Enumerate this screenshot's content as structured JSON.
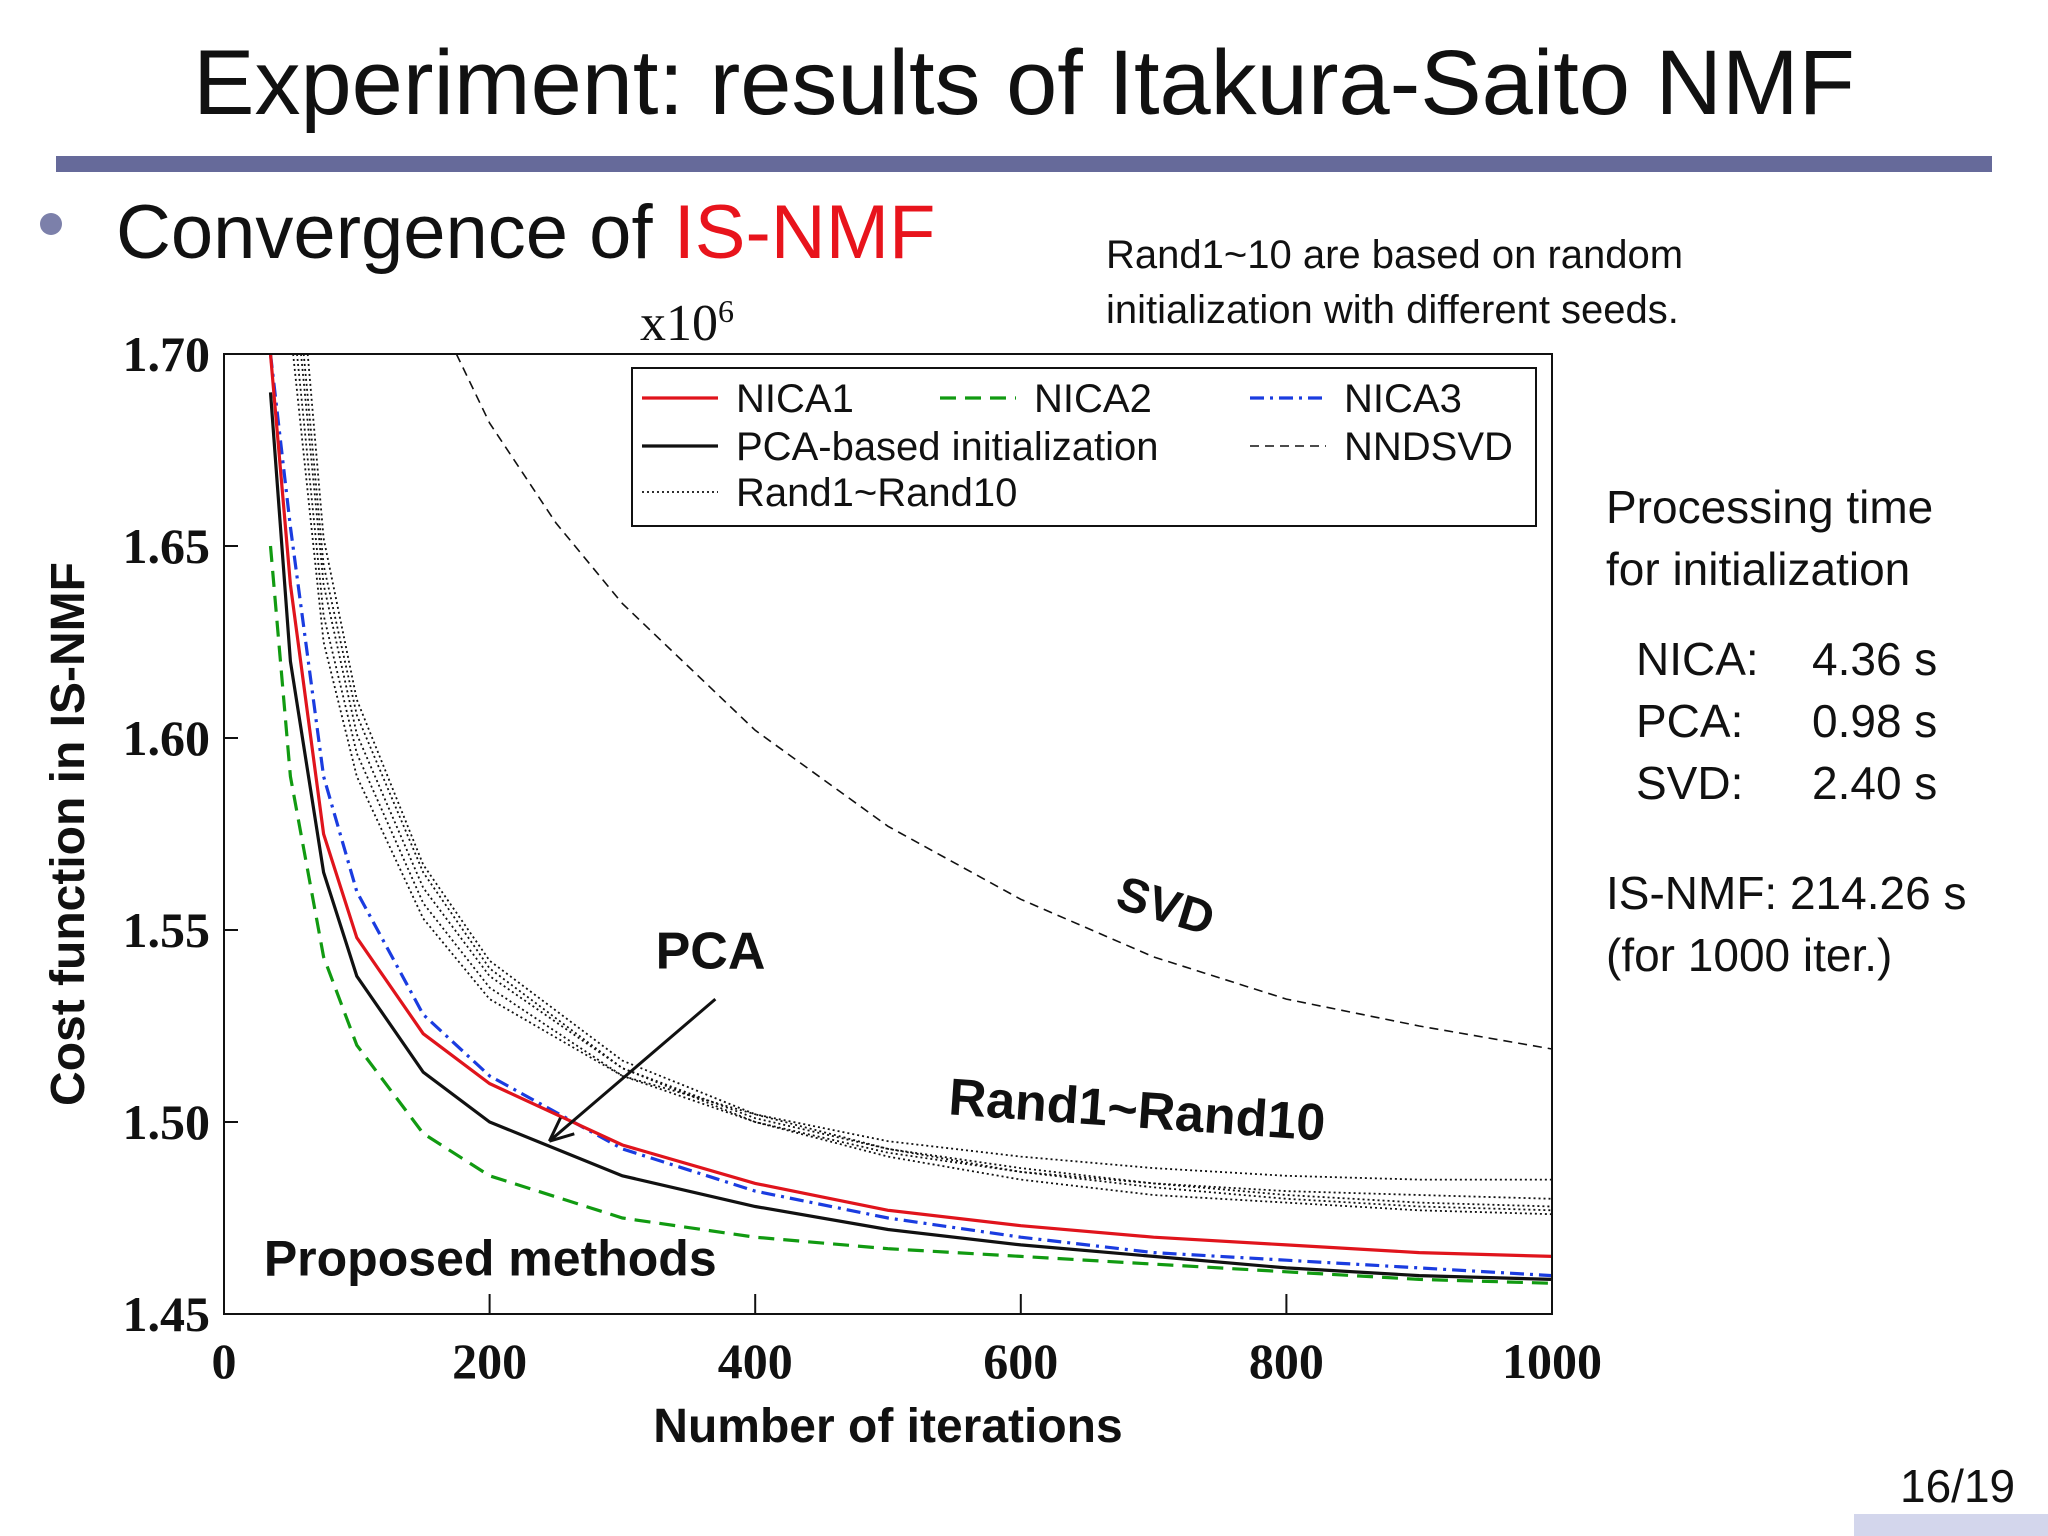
{
  "slide": {
    "title": "Experiment: results of Itakura-Saito NMF",
    "bullet": {
      "prefix": "Convergence of ",
      "highlight": "IS-NMF"
    },
    "note_lines": [
      "Rand1~10 are based on random",
      "initialization with different seeds."
    ],
    "page": "16/19"
  },
  "side_panel": {
    "heading_lines": [
      "Processing time",
      "for initialization"
    ],
    "times": [
      {
        "label": "NICA:",
        "value": "4.36 s"
      },
      {
        "label": "PCA:",
        "value": "0.98 s"
      },
      {
        "label": "SVD:",
        "value": "2.40 s"
      }
    ],
    "isnmf_lines": [
      "IS-NMF: 214.26 s",
      "(for 1000 iter.)"
    ]
  },
  "colors": {
    "accent": "#e8141c",
    "rule": "#666a9a",
    "nica1": "#e0141c",
    "nica2": "#119a11",
    "nica3": "#1a3ce0"
  },
  "chart_data": {
    "type": "line",
    "xlabel": "Number of iterations",
    "ylabel": "Cost function in IS-NMF",
    "y_multiplier": "x10",
    "y_multiplier_exp": "6",
    "xlim": [
      0,
      1000
    ],
    "ylim": [
      1.45,
      1.7
    ],
    "x_ticks": [
      "0",
      "200",
      "400",
      "600",
      "800",
      "1000"
    ],
    "y_ticks": [
      "1.45",
      "1.50",
      "1.55",
      "1.60",
      "1.65",
      "1.70"
    ],
    "x": [
      35,
      50,
      75,
      100,
      150,
      200,
      300,
      400,
      500,
      600,
      700,
      800,
      900,
      1000
    ],
    "series": [
      {
        "name": "NICA1",
        "style": "solid",
        "color": "#e0141c",
        "values": [
          1.7,
          1.64,
          1.575,
          1.548,
          1.523,
          1.51,
          1.494,
          1.484,
          1.477,
          1.473,
          1.47,
          1.468,
          1.466,
          1.465
        ]
      },
      {
        "name": "NICA2",
        "style": "dashed",
        "color": "#119a11",
        "values": [
          1.65,
          1.59,
          1.543,
          1.52,
          1.497,
          1.486,
          1.475,
          1.47,
          1.467,
          1.465,
          1.463,
          1.461,
          1.459,
          1.458
        ]
      },
      {
        "name": "NICA3",
        "style": "dashdot",
        "color": "#1a3ce0",
        "values": [
          1.7,
          1.655,
          1.59,
          1.56,
          1.528,
          1.512,
          1.493,
          1.482,
          1.475,
          1.47,
          1.466,
          1.464,
          1.462,
          1.46
        ]
      },
      {
        "name": "PCA-based initialization",
        "style": "solid",
        "color": "#111111",
        "values": [
          1.69,
          1.62,
          1.565,
          1.538,
          1.513,
          1.5,
          1.486,
          1.478,
          1.472,
          1.468,
          1.465,
          1.462,
          1.46,
          1.459
        ]
      },
      {
        "name": "NNDSVD",
        "style": "dashed-thin",
        "color": "#111111",
        "x": [
          175,
          200,
          250,
          300,
          400,
          500,
          600,
          700,
          800,
          900,
          1000
        ],
        "values": [
          1.7,
          1.682,
          1.656,
          1.635,
          1.602,
          1.577,
          1.558,
          1.543,
          1.532,
          1.525,
          1.519
        ]
      },
      {
        "name": "Rand1~Rand10",
        "style": "dotted",
        "color": "#111111",
        "bundle": [
          {
            "x": [
              52,
              75,
              100,
              150,
              200,
              300,
              400,
              500,
              600,
              700,
              800,
              900,
              1000
            ],
            "values": [
              1.7,
              1.625,
              1.59,
              1.553,
              1.532,
              1.512,
              1.502,
              1.495,
              1.491,
              1.488,
              1.486,
              1.485,
              1.485
            ]
          },
          {
            "x": [
              55,
              75,
              100,
              150,
              200,
              300,
              400,
              500,
              600,
              700,
              800,
              900,
              1000
            ],
            "values": [
              1.7,
              1.632,
              1.596,
              1.557,
              1.535,
              1.512,
              1.5,
              1.492,
              1.487,
              1.484,
              1.482,
              1.481,
              1.48
            ]
          },
          {
            "x": [
              58,
              75,
              100,
              150,
              200,
              300,
              400,
              500,
              600,
              700,
              800,
              900,
              1000
            ],
            "values": [
              1.7,
              1.64,
              1.601,
              1.561,
              1.538,
              1.514,
              1.501,
              1.493,
              1.488,
              1.484,
              1.481,
              1.479,
              1.478
            ]
          },
          {
            "x": [
              60,
              75,
              100,
              150,
              200,
              300,
              400,
              500,
              600,
              700,
              800,
              900,
              1000
            ],
            "values": [
              1.7,
              1.645,
              1.606,
              1.565,
              1.54,
              1.514,
              1.5,
              1.491,
              1.485,
              1.481,
              1.479,
              1.477,
              1.476
            ]
          },
          {
            "x": [
              63,
              75,
              100,
              150,
              200,
              300,
              400,
              500,
              600,
              700,
              800,
              900,
              1000
            ],
            "values": [
              1.7,
              1.652,
              1.61,
              1.567,
              1.542,
              1.516,
              1.502,
              1.493,
              1.487,
              1.483,
              1.48,
              1.478,
              1.477
            ]
          }
        ]
      }
    ],
    "legend": {
      "placement": "top-right",
      "entries": [
        "NICA1",
        "NICA2",
        "NICA3",
        "PCA-based initialization",
        "NNDSVD",
        "Rand1~Rand10"
      ]
    },
    "annotations": [
      {
        "text": "SVD",
        "x": 670,
        "y": 1.556,
        "rotate": 17,
        "size": 48
      },
      {
        "text": "Rand1~Rand10",
        "x": 545,
        "y": 1.502,
        "rotate": 4,
        "size": 52
      },
      {
        "text": "PCA",
        "x": 325,
        "y": 1.54,
        "rotate": 0,
        "size": 52
      },
      {
        "text": "Proposed methods",
        "x": 30,
        "y": 1.46,
        "rotate": 0,
        "size": 50
      }
    ],
    "arrow": {
      "from": [
        370,
        1.532
      ],
      "to": [
        245,
        1.495
      ]
    }
  }
}
